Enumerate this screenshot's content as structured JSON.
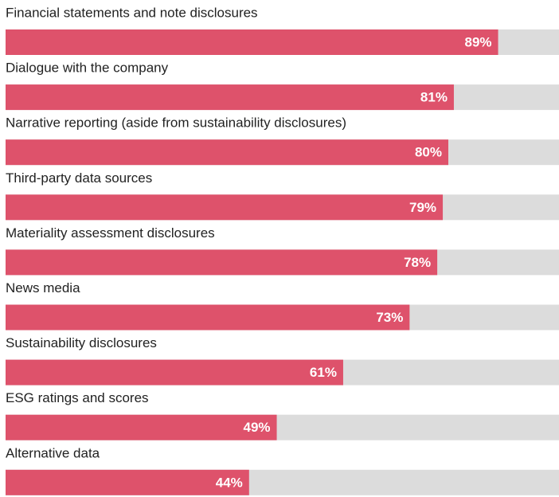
{
  "chart_data": {
    "type": "bar",
    "orientation": "horizontal",
    "categories": [
      "Financial statements and note disclosures",
      "Dialogue with the company",
      "Narrative reporting (aside from sustainability disclosures)",
      "Third-party data sources",
      "Materiality assessment disclosures",
      "News media",
      "Sustainability disclosures",
      "ESG ratings and scores",
      "Alternative data"
    ],
    "values": [
      89,
      81,
      80,
      79,
      78,
      73,
      61,
      49,
      44
    ],
    "value_labels": [
      "89%",
      "81%",
      "80%",
      "79%",
      "78%",
      "73%",
      "61%",
      "49%",
      "44%"
    ],
    "color": "#de526b",
    "track_color": "#dcdcdc",
    "xlim": [
      0,
      100
    ]
  }
}
